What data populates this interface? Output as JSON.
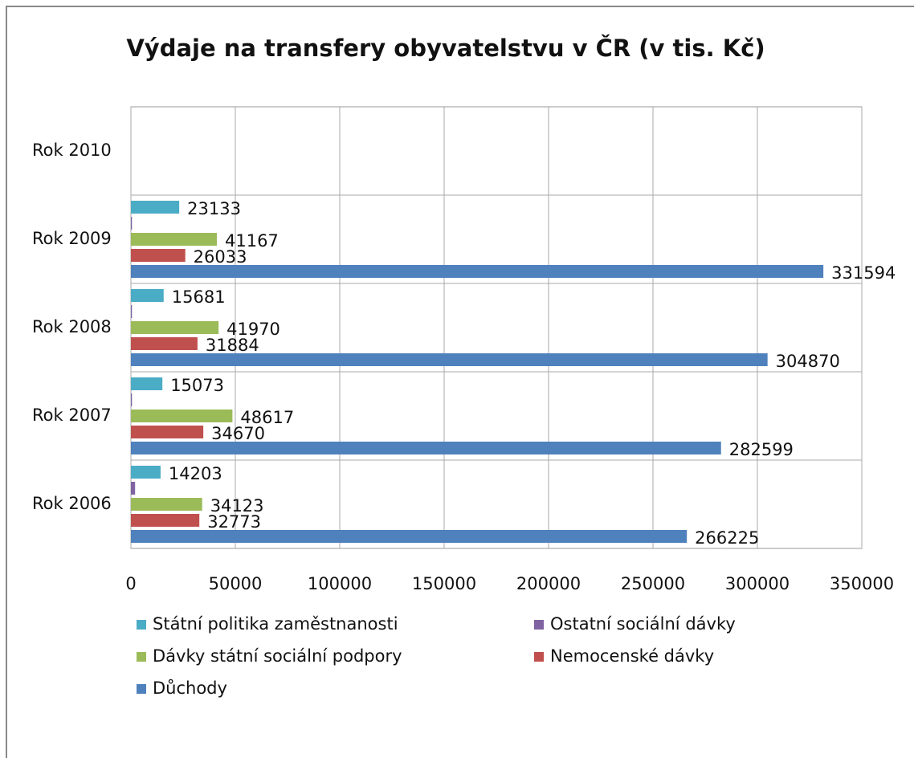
{
  "chart_data": {
    "type": "hbar",
    "title": "Výdaje na transfery obyvatelstvu v ČR (v tis. Kč)",
    "categories": [
      "Rok 2006",
      "Rok 2007",
      "Rok 2008",
      "Rok 2009",
      "Rok 2010"
    ],
    "series": [
      {
        "name": "Státní politika zaměstnanosti",
        "color": "#4bacc6",
        "values": [
          14203,
          15073,
          15681,
          23133,
          null
        ],
        "data_labels": true
      },
      {
        "name": "Ostatní sociální dávky",
        "color": "#8064a2",
        "values": [
          2000,
          500,
          500,
          500,
          null
        ],
        "data_labels": false
      },
      {
        "name": "Dávky státní sociální podpory",
        "color": "#9bbb59",
        "values": [
          34123,
          48617,
          41970,
          41167,
          null
        ],
        "data_labels": true
      },
      {
        "name": "Nemocenské dávky",
        "color": "#c0504d",
        "values": [
          32773,
          34670,
          31884,
          26033,
          null
        ],
        "data_labels": true
      },
      {
        "name": "Důchody",
        "color": "#4f81bd",
        "values": [
          266225,
          282599,
          304870,
          331594,
          null
        ],
        "data_labels": true
      }
    ],
    "xlim": [
      0,
      350000
    ],
    "xticks": [
      0,
      50000,
      100000,
      150000,
      200000,
      250000,
      300000,
      350000
    ],
    "grid": true,
    "legend": "bottom"
  }
}
